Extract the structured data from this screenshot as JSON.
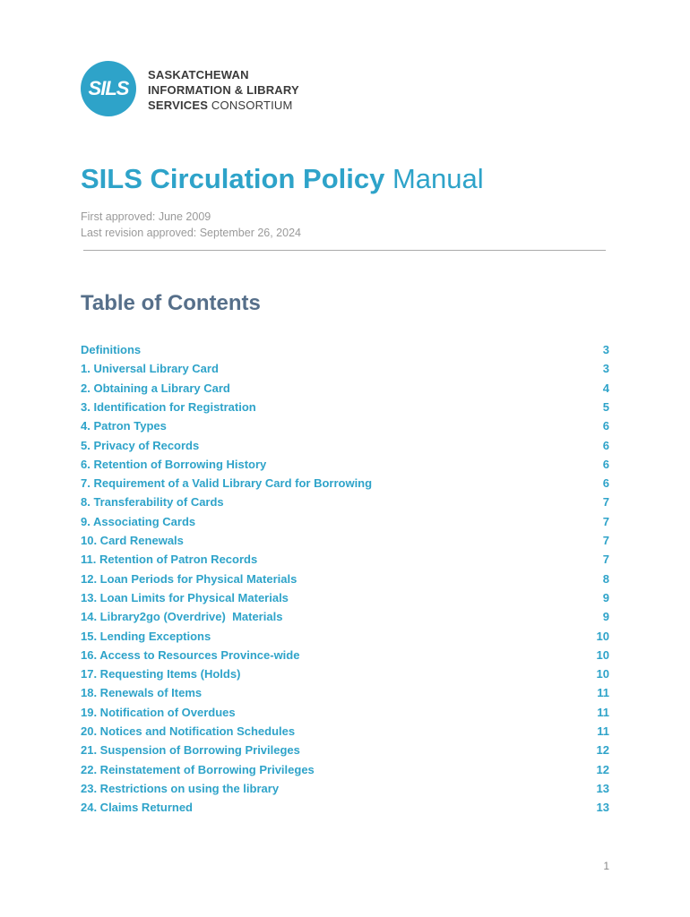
{
  "logo": {
    "mark": "SILS",
    "line1": "SASKATCHEWAN",
    "line2": "INFORMATION & LIBRARY",
    "line3_bold": "SERVICES",
    "line3_light": "CONSORTIUM"
  },
  "title": {
    "bold": "SILS Circulation Policy",
    "regular": "Manual"
  },
  "meta": {
    "first_approved": "First approved: June 2009",
    "last_revision": "Last revision approved: September 26, 2024"
  },
  "toc": {
    "heading": "Table of Contents",
    "entries": [
      {
        "label": "Definitions",
        "page": 3
      },
      {
        "label": "1. Universal Library Card",
        "page": 3
      },
      {
        "label": "2. Obtaining a Library Card",
        "page": 4
      },
      {
        "label": "3. Identification for Registration",
        "page": 5
      },
      {
        "label": "4. Patron Types",
        "page": 6
      },
      {
        "label": "5. Privacy of Records",
        "page": 6
      },
      {
        "label": "6. Retention of Borrowing History",
        "page": 6
      },
      {
        "label": "7. Requirement of a Valid Library Card for Borrowing",
        "page": 6
      },
      {
        "label": "8. Transferability of Cards",
        "page": 7
      },
      {
        "label": "9. Associating Cards",
        "page": 7
      },
      {
        "label": "10. Card Renewals",
        "page": 7
      },
      {
        "label": "11. Retention of Patron Records",
        "page": 7
      },
      {
        "label": "12. Loan Periods for Physical Materials",
        "page": 8
      },
      {
        "label": "13. Loan Limits for Physical Materials",
        "page": 9
      },
      {
        "label": "14. Library2go (Overdrive)  Materials",
        "page": 9
      },
      {
        "label": "15. Lending Exceptions",
        "page": 10
      },
      {
        "label": "16. Access to Resources Province-wide",
        "page": 10
      },
      {
        "label": "17. Requesting Items (Holds)",
        "page": 10
      },
      {
        "label": "18. Renewals of Items",
        "page": 11
      },
      {
        "label": "19. Notification of Overdues",
        "page": 11
      },
      {
        "label": "20. Notices and Notification Schedules",
        "page": 11
      },
      {
        "label": "21. Suspension of Borrowing Privileges",
        "page": 12
      },
      {
        "label": "22. Reinstatement of Borrowing Privileges",
        "page": 12
      },
      {
        "label": "23. Restrictions on using the library",
        "page": 13
      },
      {
        "label": "24. Claims Returned",
        "page": 13
      }
    ]
  },
  "footer": {
    "page_number": 1
  }
}
